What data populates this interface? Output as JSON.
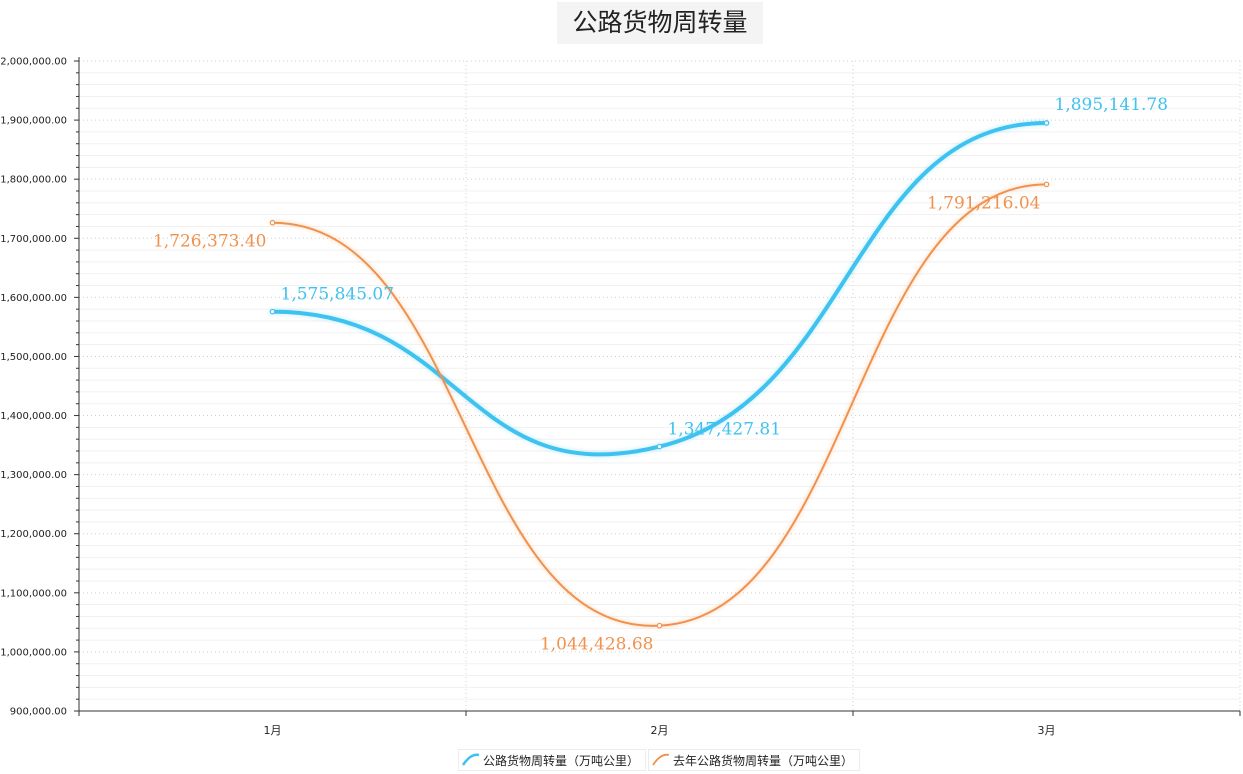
{
  "chart_data": {
    "type": "line",
    "title": "公路货物周转量",
    "categories": [
      "1月",
      "2月",
      "3月"
    ],
    "series": [
      {
        "name": "公路货物周转量（万吨公里）",
        "values": [
          1575845.07,
          1347427.81,
          1895141.78
        ],
        "labels": [
          "1,575,845.07",
          "1,347,427.81",
          "1,895,141.78"
        ],
        "color": "#3ec2ef"
      },
      {
        "name": "去年公路货物周转量（万吨公里）",
        "values": [
          1726373.4,
          1044428.68,
          1791216.04
        ],
        "labels": [
          "1,726,373.40",
          "1,044,428.68",
          "1,791,216.04"
        ],
        "color": "#f0924e"
      }
    ],
    "ylim": [
      900000,
      2000000
    ],
    "yticks": [
      "2,000,000.00",
      "1,900,000.00",
      "1,800,000.00",
      "1,700,000.00",
      "1,600,000.00",
      "1,500,000.00",
      "1,400,000.00",
      "1,300,000.00",
      "1,200,000.00",
      "1,100,000.00",
      "1,000,000.00",
      "900,000.00"
    ],
    "grid": true,
    "smooth": true,
    "legend": "bottom-center"
  }
}
